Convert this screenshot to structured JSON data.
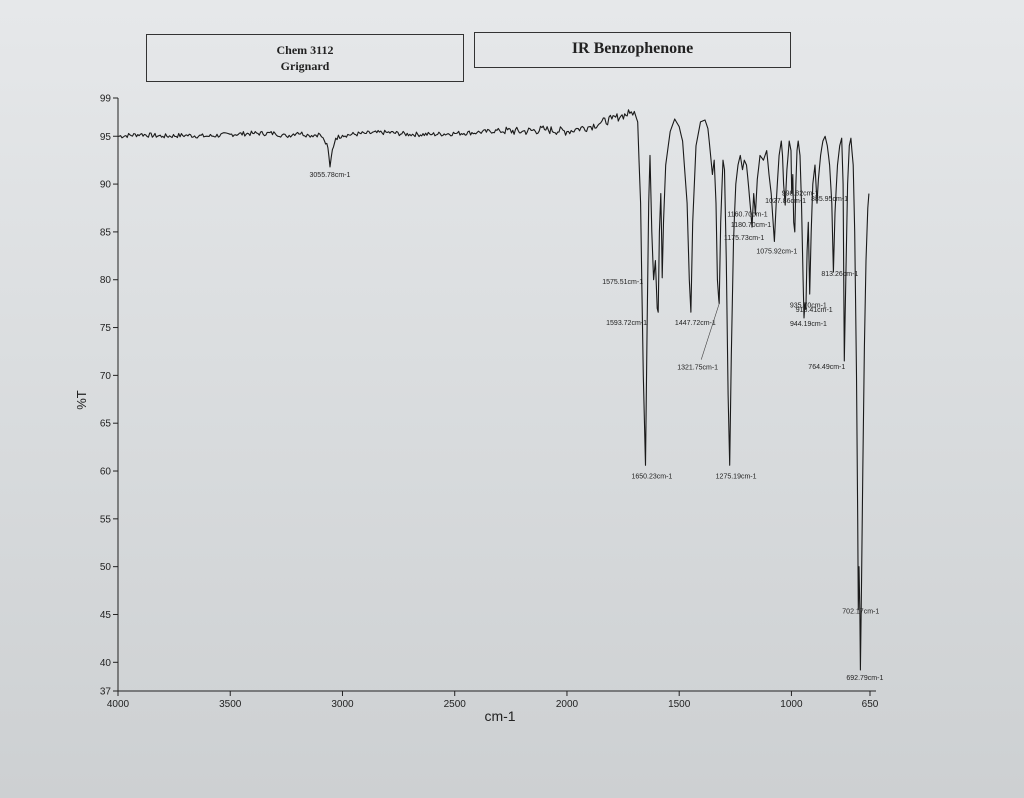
{
  "header": {
    "course": "Chem 3112",
    "experiment": "Grignard",
    "title": "IR Benzophenone"
  },
  "chart_data": {
    "type": "line",
    "title": "IR Benzophenone",
    "xlabel": "cm-1",
    "ylabel": "%T",
    "xlim": [
      4000,
      650
    ],
    "ylim": [
      37,
      99
    ],
    "x_reversed": true,
    "x_ticks": [
      4000,
      3500,
      3000,
      2500,
      2000,
      1500,
      1000,
      650
    ],
    "y_ticks": [
      37,
      40,
      45,
      50,
      55,
      60,
      65,
      70,
      75,
      80,
      85,
      90,
      95,
      99
    ],
    "grid": false,
    "line_color": "#1a1a1a",
    "series": [
      {
        "points": [
          [
            4000,
            95.0
          ],
          [
            3900,
            95.2
          ],
          [
            3800,
            95.0
          ],
          [
            3700,
            95.1
          ],
          [
            3600,
            95.0
          ],
          [
            3500,
            95.2
          ],
          [
            3400,
            95.3
          ],
          [
            3300,
            95.3
          ],
          [
            3250,
            95.0
          ],
          [
            3200,
            95.4
          ],
          [
            3150,
            95.1
          ],
          [
            3100,
            95.2
          ],
          [
            3080,
            94.5
          ],
          [
            3065,
            93.8
          ],
          [
            3055.78,
            91.8
          ],
          [
            3045,
            93.6
          ],
          [
            3030,
            94.8
          ],
          [
            3000,
            95.1
          ],
          [
            2900,
            95.3
          ],
          [
            2800,
            95.4
          ],
          [
            2700,
            95.2
          ],
          [
            2600,
            95.2
          ],
          [
            2500,
            95.3
          ],
          [
            2400,
            95.4
          ],
          [
            2300,
            95.6
          ],
          [
            2200,
            95.5
          ],
          [
            2100,
            95.7
          ],
          [
            2000,
            95.5
          ],
          [
            1950,
            95.8
          ],
          [
            1900,
            96.0
          ],
          [
            1850,
            96.4
          ],
          [
            1800,
            96.8
          ],
          [
            1760,
            97.1
          ],
          [
            1720,
            97.4
          ],
          [
            1700,
            97.6
          ],
          [
            1685,
            96.5
          ],
          [
            1672,
            88.0
          ],
          [
            1660,
            70.0
          ],
          [
            1650.23,
            60.6
          ],
          [
            1643,
            75.0
          ],
          [
            1636,
            88.0
          ],
          [
            1630,
            93.0
          ],
          [
            1622,
            85.0
          ],
          [
            1614,
            80.0
          ],
          [
            1606,
            82.0
          ],
          [
            1598,
            77.0
          ],
          [
            1593.72,
            76.6
          ],
          [
            1588,
            85.0
          ],
          [
            1582,
            89.0
          ],
          [
            1578,
            84.0
          ],
          [
            1575.51,
            80.2
          ],
          [
            1570,
            86.0
          ],
          [
            1560,
            92.0
          ],
          [
            1540,
            95.5
          ],
          [
            1520,
            96.8
          ],
          [
            1500,
            96.0
          ],
          [
            1485,
            94.5
          ],
          [
            1465,
            88.0
          ],
          [
            1455,
            80.0
          ],
          [
            1447.72,
            76.6
          ],
          [
            1440,
            86.0
          ],
          [
            1425,
            94.0
          ],
          [
            1405,
            96.5
          ],
          [
            1385,
            96.7
          ],
          [
            1372,
            95.8
          ],
          [
            1360,
            93.0
          ],
          [
            1352,
            91.0
          ],
          [
            1344,
            92.5
          ],
          [
            1336,
            88.0
          ],
          [
            1330,
            80.0
          ],
          [
            1324,
            78.0
          ],
          [
            1321.75,
            77.5
          ],
          [
            1315,
            86.0
          ],
          [
            1305,
            92.5
          ],
          [
            1298,
            91.5
          ],
          [
            1290,
            82.0
          ],
          [
            1282,
            68.0
          ],
          [
            1275.19,
            60.6
          ],
          [
            1268,
            72.0
          ],
          [
            1258,
            84.0
          ],
          [
            1248,
            90.0
          ],
          [
            1238,
            92.0
          ],
          [
            1228,
            93.0
          ],
          [
            1218,
            91.5
          ],
          [
            1210,
            92.5
          ],
          [
            1200,
            92.0
          ],
          [
            1190,
            89.5
          ],
          [
            1180.7,
            87.0
          ],
          [
            1175.73,
            85.5
          ],
          [
            1168,
            89.0
          ],
          [
            1160.7,
            86.8
          ],
          [
            1152,
            90.5
          ],
          [
            1140,
            93.0
          ],
          [
            1125,
            92.5
          ],
          [
            1110,
            93.5
          ],
          [
            1100,
            91.0
          ],
          [
            1090,
            89.0
          ],
          [
            1075.92,
            84.0
          ],
          [
            1068,
            88.0
          ],
          [
            1055,
            93.0
          ],
          [
            1045,
            94.5
          ],
          [
            1040,
            93.0
          ],
          [
            1035,
            90.0
          ],
          [
            1027.86,
            87.8
          ],
          [
            1020,
            91.5
          ],
          [
            1010,
            94.5
          ],
          [
            1002,
            93.5
          ],
          [
            998.82,
            89.0
          ],
          [
            994,
            91.0
          ],
          [
            990,
            86.0
          ],
          [
            985,
            85.0
          ],
          [
            980,
            90.0
          ],
          [
            975,
            93.5
          ],
          [
            970,
            94.5
          ],
          [
            962,
            93.0
          ],
          [
            955,
            88.0
          ],
          [
            948,
            80.0
          ],
          [
            944.19,
            76.0
          ],
          [
            940,
            77.5
          ],
          [
            935.7,
            76.9
          ],
          [
            930,
            83.0
          ],
          [
            925,
            86.0
          ],
          [
            918.41,
            78.5
          ],
          [
            912,
            85.0
          ],
          [
            905,
            90.0
          ],
          [
            895,
            92.0
          ],
          [
            885.95,
            88.0
          ],
          [
            880,
            90.5
          ],
          [
            870,
            93.0
          ],
          [
            860,
            94.5
          ],
          [
            850,
            95.0
          ],
          [
            840,
            94.0
          ],
          [
            830,
            92.0
          ],
          [
            820,
            88.0
          ],
          [
            813.26,
            80.8
          ],
          [
            806,
            87.0
          ],
          [
            795,
            92.0
          ],
          [
            785,
            94.0
          ],
          [
            776,
            94.8
          ],
          [
            770,
            90.0
          ],
          [
            764.49,
            71.5
          ],
          [
            758,
            80.0
          ],
          [
            750,
            90.0
          ],
          [
            742,
            94.0
          ],
          [
            735,
            94.8
          ],
          [
            725,
            92.0
          ],
          [
            718,
            85.0
          ],
          [
            710,
            70.0
          ],
          [
            705,
            55.0
          ],
          [
            702.17,
            45.5
          ],
          [
            699,
            50.0
          ],
          [
            695,
            45.0
          ],
          [
            692.79,
            39.2
          ],
          [
            688,
            48.0
          ],
          [
            682,
            60.0
          ],
          [
            675,
            73.0
          ],
          [
            668,
            82.0
          ],
          [
            660,
            87.5
          ],
          [
            655,
            89.0
          ]
        ]
      }
    ],
    "annotations": [
      {
        "text": "3055.78cm-1",
        "x": 3055.78,
        "y": 91.8
      },
      {
        "text": "1575.51cm-1",
        "x": 1575.51,
        "y": 80.2
      },
      {
        "text": "1593.72cm-1",
        "x": 1593.72,
        "y": 76.6
      },
      {
        "text": "1447.72cm-1",
        "x": 1447.72,
        "y": 76.6
      },
      {
        "text": "1321.75cm-1",
        "x": 1321.75,
        "y": 77.5
      },
      {
        "text": "1650.23cm-1",
        "x": 1650.23,
        "y": 60.6
      },
      {
        "text": "1275.19cm-1",
        "x": 1275.19,
        "y": 60.6
      },
      {
        "text": "1027.86cm-1",
        "x": 1027.86,
        "y": 87.8
      },
      {
        "text": "885.95cm-1",
        "x": 885.95,
        "y": 88.0
      },
      {
        "text": "1160.70cm-1",
        "x": 1160.7,
        "y": 86.8
      },
      {
        "text": "1180.70cm-1",
        "x": 1180.7,
        "y": 87.0
      },
      {
        "text": "1175.73cm-1",
        "x": 1175.73,
        "y": 85.5
      },
      {
        "text": "998.82cm-1",
        "x": 998.82,
        "y": 89.0
      },
      {
        "text": "1075.92cm-1",
        "x": 1075.92,
        "y": 84.0
      },
      {
        "text": "813.26cm-1",
        "x": 813.26,
        "y": 80.8
      },
      {
        "text": "935.70cm-1",
        "x": 935.7,
        "y": 76.9
      },
      {
        "text": "944.19cm-1",
        "x": 944.19,
        "y": 76.0
      },
      {
        "text": "918.41cm-1",
        "x": 918.41,
        "y": 78.5
      },
      {
        "text": "764.49cm-1",
        "x": 764.49,
        "y": 71.5
      },
      {
        "text": "702.17cm-1",
        "x": 702.17,
        "y": 45.5
      },
      {
        "text": "692.79cm-1",
        "x": 692.79,
        "y": 39.2
      }
    ]
  }
}
